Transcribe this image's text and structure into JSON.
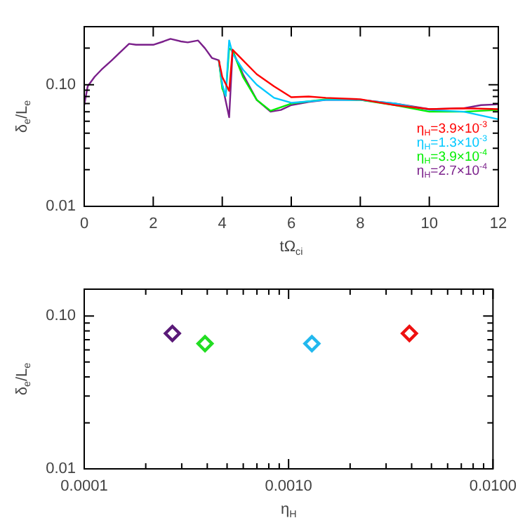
{
  "chart_data": [
    {
      "type": "line",
      "xlabel": "tΩ$_{ci}$",
      "ylabel": "δ$_{e}$/L$_{e}$",
      "log": "y",
      "grid": false,
      "legend": "right",
      "marker": "none",
      "line_style": "solid",
      "xlim": [
        0,
        12
      ],
      "xticks": [
        0,
        2,
        4,
        6,
        8,
        10,
        12
      ],
      "ylim": [
        0.01,
        0.3
      ],
      "yticks": [
        {
          "value": 0.01,
          "label": "0.01"
        },
        {
          "value": 0.02,
          "label": null
        },
        {
          "value": 0.03,
          "label": null
        },
        {
          "value": 0.04,
          "label": null
        },
        {
          "value": 0.05,
          "label": null
        },
        {
          "value": 0.06,
          "label": null
        },
        {
          "value": 0.07,
          "label": null
        },
        {
          "value": 0.08,
          "label": null
        },
        {
          "value": 0.09,
          "label": null
        },
        {
          "value": 0.1,
          "label": "0.10"
        },
        {
          "value": 0.2,
          "label": null
        },
        {
          "value": 0.3,
          "label": null
        }
      ],
      "series": [
        {
          "name": "η$_{H}$=3.9×10$^{-3}$",
          "color": "#ff0000",
          "x": [
            3.9,
            4,
            4.2,
            4.3,
            4.6,
            5,
            5.5,
            6,
            6.5,
            7,
            8,
            9,
            10,
            11,
            12
          ],
          "values": [
            0.159,
            0.116,
            0.089,
            0.194,
            0.159,
            0.122,
            0.097,
            0.079,
            0.08,
            0.078,
            0.076,
            0.068,
            0.063,
            0.064,
            0.063
          ]
        },
        {
          "name": "η$_{H}$=1.3×10$^{-3}$",
          "color": "#00c8ff",
          "x": [
            3.9,
            4,
            4.1,
            4.2,
            4.3,
            4.6,
            5,
            5.5,
            6,
            7,
            8,
            9,
            10,
            11,
            12
          ],
          "values": [
            0.159,
            0.1,
            0.081,
            0.231,
            0.18,
            0.133,
            0.1,
            0.078,
            0.071,
            0.075,
            0.075,
            0.07,
            0.062,
            0.06,
            0.052
          ]
        },
        {
          "name": "η$_{H}$=3.9×10$^{-4}$",
          "color": "#00ee00",
          "x": [
            3.9,
            4,
            4.1,
            4.2,
            4.3,
            4.6,
            5,
            5.4,
            6,
            7,
            8,
            9,
            10,
            11,
            12
          ],
          "values": [
            0.159,
            0.093,
            0.081,
            0.199,
            0.19,
            0.116,
            0.075,
            0.061,
            0.07,
            0.076,
            0.075,
            0.068,
            0.06,
            0.06,
            0.062
          ]
        },
        {
          "name": "η$_{H}$=2.7×10$^{-4}$",
          "color": "#7a1f8a",
          "x": [
            0,
            0.1,
            0.3,
            0.5,
            0.8,
            1,
            1.3,
            1.5,
            2,
            2.3,
            2.5,
            2.8,
            3,
            3.3,
            3.5,
            3.7,
            3.9,
            4,
            4.2,
            4.3,
            4.6,
            5,
            5.4,
            5.7,
            6,
            6.5,
            7,
            8,
            9,
            10,
            11,
            11.5,
            12
          ],
          "values": [
            0.068,
            0.097,
            0.116,
            0.133,
            0.159,
            0.18,
            0.217,
            0.213,
            0.213,
            0.227,
            0.238,
            0.227,
            0.223,
            0.231,
            0.199,
            0.166,
            0.159,
            0.1,
            0.054,
            0.19,
            0.122,
            0.075,
            0.06,
            0.062,
            0.068,
            0.072,
            0.075,
            0.075,
            0.07,
            0.063,
            0.064,
            0.068,
            0.069
          ]
        }
      ]
    },
    {
      "type": "scatter",
      "xlabel": "η$_{H}$",
      "ylabel": "δ$_{e}$/L$_{e}$",
      "log": "xy",
      "grid": false,
      "legend": false,
      "marker": "diamond",
      "xlim": [
        0.0001,
        0.01
      ],
      "xticks": [
        {
          "value": 0.0001,
          "label": "0.0001"
        },
        {
          "value": 0.0002,
          "label": null
        },
        {
          "value": 0.0003,
          "label": null
        },
        {
          "value": 0.0004,
          "label": null
        },
        {
          "value": 0.0005,
          "label": null
        },
        {
          "value": 0.0006,
          "label": null
        },
        {
          "value": 0.0007,
          "label": null
        },
        {
          "value": 0.0008,
          "label": null
        },
        {
          "value": 0.0009,
          "label": null
        },
        {
          "value": 0.001,
          "label": "0.0010"
        },
        {
          "value": 0.002,
          "label": null
        },
        {
          "value": 0.003,
          "label": null
        },
        {
          "value": 0.004,
          "label": null
        },
        {
          "value": 0.005,
          "label": null
        },
        {
          "value": 0.006,
          "label": null
        },
        {
          "value": 0.007,
          "label": null
        },
        {
          "value": 0.008,
          "label": null
        },
        {
          "value": 0.009,
          "label": null
        },
        {
          "value": 0.01,
          "label": "0.0100"
        }
      ],
      "ylim": [
        0.01,
        0.15
      ],
      "yticks": [
        {
          "value": 0.01,
          "label": "0.01"
        },
        {
          "value": 0.02,
          "label": null
        },
        {
          "value": 0.03,
          "label": null
        },
        {
          "value": 0.04,
          "label": null
        },
        {
          "value": 0.05,
          "label": null
        },
        {
          "value": 0.06,
          "label": null
        },
        {
          "value": 0.07,
          "label": null
        },
        {
          "value": 0.08,
          "label": null
        },
        {
          "value": 0.09,
          "label": null
        },
        {
          "value": 0.1,
          "label": "0.10"
        }
      ],
      "series": [
        {
          "x": [
            0.00027,
            0.00039,
            0.0013,
            0.0039
          ],
          "values": [
            0.077,
            0.066,
            0.066,
            0.077
          ],
          "colors": [
            "#5a1a78",
            "#22dd22",
            "#22b8ee",
            "#ee1111"
          ]
        }
      ]
    }
  ]
}
